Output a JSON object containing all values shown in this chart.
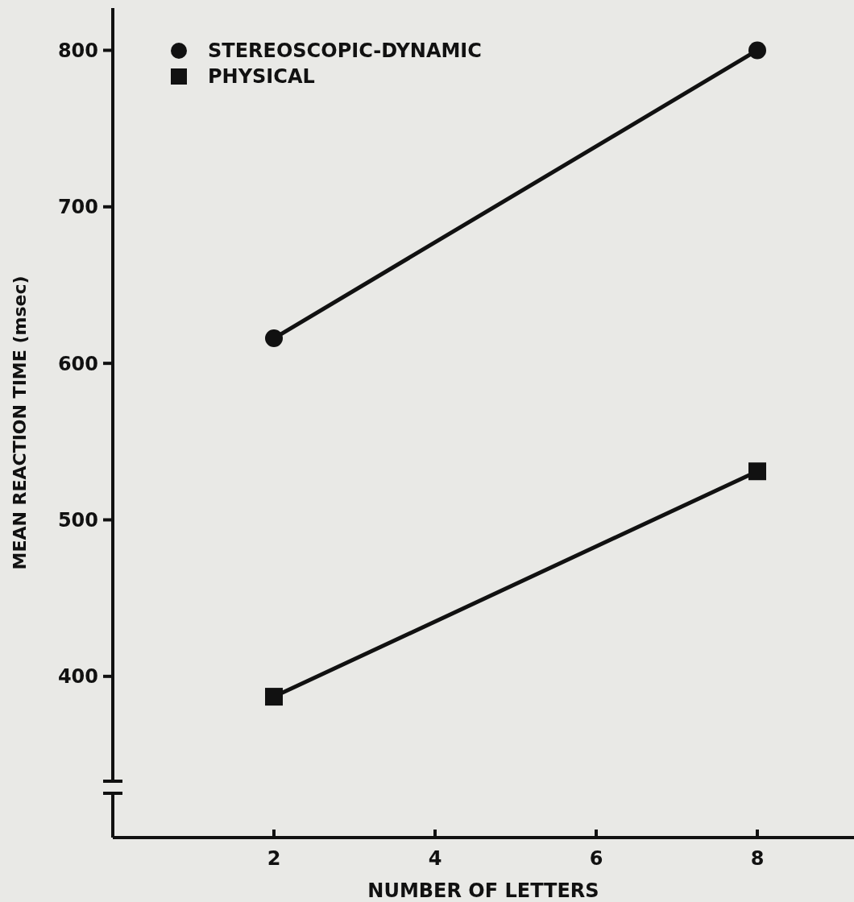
{
  "chart_data": {
    "type": "line",
    "xlabel": "NUMBER OF LETTERS",
    "ylabel": "MEAN REACTION TIME (msec)",
    "x": [
      2,
      8
    ],
    "series": [
      {
        "name": "STEREOSCOPIC-DYNAMIC",
        "color": "#111111",
        "values": [
          616,
          800
        ],
        "marker": "circle"
      },
      {
        "name": "PHYSICAL",
        "color": "#111111",
        "values": [
          387,
          531
        ],
        "marker": "square"
      }
    ],
    "xlim": [
      0,
      9.2
    ],
    "xticks": [
      2,
      4,
      6,
      8
    ],
    "ylim": [
      297,
      827
    ],
    "yticks": [
      400,
      500,
      600,
      700,
      800
    ],
    "grid": false,
    "legend": "top left",
    "line_style": "solid"
  }
}
